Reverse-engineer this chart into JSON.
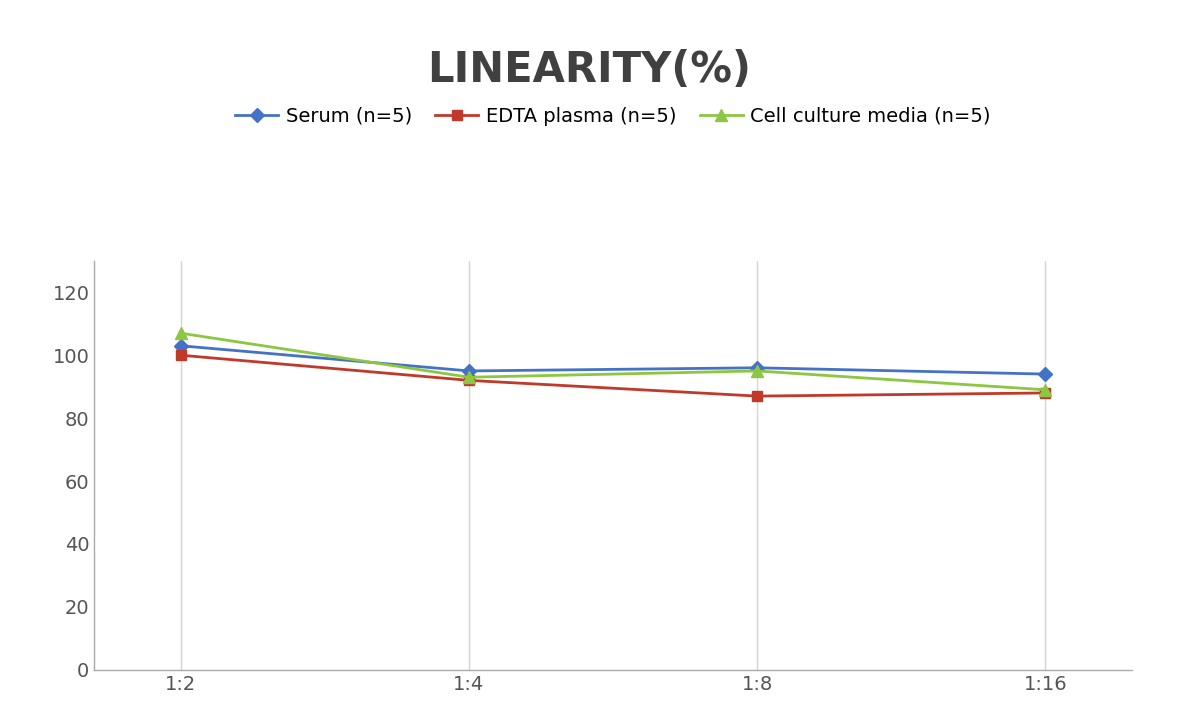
{
  "title": "LINEARITY(%)",
  "title_fontsize": 30,
  "title_fontweight": "bold",
  "x_labels": [
    "1:2",
    "1:4",
    "1:8",
    "1:16"
  ],
  "x_positions": [
    0,
    1,
    2,
    3
  ],
  "ylim": [
    0,
    130
  ],
  "yticks": [
    0,
    20,
    40,
    60,
    80,
    100,
    120
  ],
  "series": [
    {
      "label": "Serum (n=5)",
      "color": "#4472C4",
      "marker": "D",
      "markersize": 7,
      "linewidth": 2,
      "values": [
        103,
        95,
        96,
        94
      ]
    },
    {
      "label": "EDTA plasma (n=5)",
      "color": "#C0392B",
      "marker": "s",
      "markersize": 7,
      "linewidth": 2,
      "values": [
        100,
        92,
        87,
        88
      ]
    },
    {
      "label": "Cell culture media (n=5)",
      "color": "#8DC641",
      "marker": "^",
      "markersize": 8,
      "linewidth": 2,
      "values": [
        107,
        93,
        95,
        89
      ]
    }
  ],
  "legend_fontsize": 14,
  "tick_fontsize": 14,
  "grid_color": "#D5D5D5",
  "background_color": "#FFFFFF",
  "spine_color": "#AAAAAA",
  "title_color": "#404040"
}
